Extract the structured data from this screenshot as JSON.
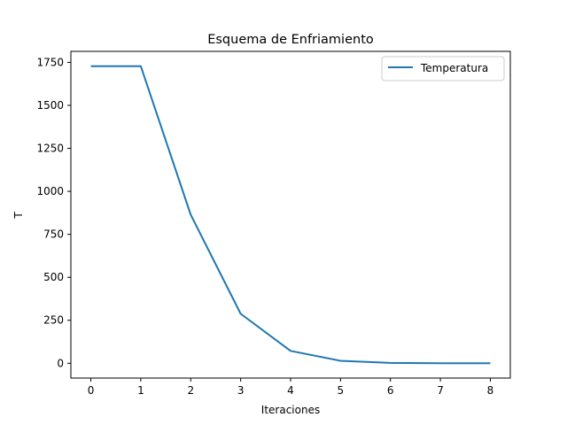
{
  "chart_data": {
    "type": "line",
    "title": "Esquema de Enfriamiento",
    "xlabel": "Iteraciones",
    "ylabel": "T",
    "x": [
      0,
      1,
      2,
      3,
      4,
      5,
      6,
      7,
      8
    ],
    "series": [
      {
        "name": "Temperatura",
        "color": "#1f77b4",
        "values": [
          1728,
          1728,
          864,
          288,
          72,
          14.4,
          2.4,
          0.34,
          0.04
        ]
      }
    ],
    "xlim": [
      -0.4,
      8.4
    ],
    "ylim": [
      -86,
      1814
    ],
    "xticks": [
      "0",
      "1",
      "2",
      "3",
      "4",
      "5",
      "6",
      "7",
      "8"
    ],
    "yticks": [
      "0",
      "250",
      "500",
      "750",
      "1000",
      "1250",
      "1500",
      "1750"
    ],
    "grid": false,
    "legend_position": "top-right"
  }
}
